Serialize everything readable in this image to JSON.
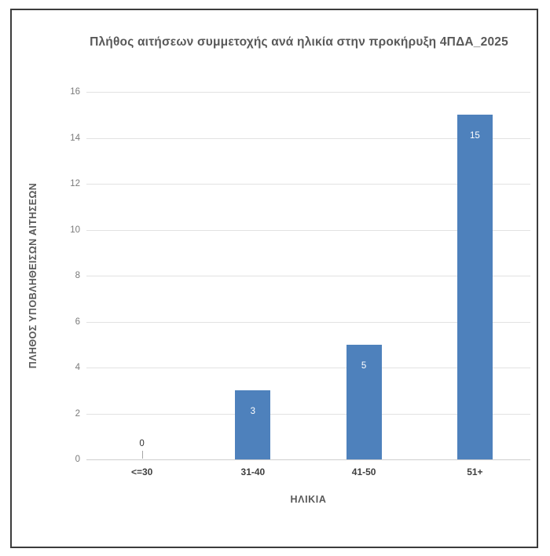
{
  "chart_data": {
    "type": "bar",
    "title": "Πλήθος αιτήσεων συμμετοχής ανά ηλικία στην προκήρυξη 4ΠΔΑ_2025",
    "categories": [
      "<=30",
      "31-40",
      "41-50",
      "51+"
    ],
    "values": [
      0,
      3,
      5,
      15
    ],
    "data_labels": [
      "0",
      "3",
      "5",
      "15"
    ],
    "xlabel": "ΗΛΙΚΙΑ",
    "ylabel": "ΠΛΗΘΟΣ ΥΠΟΒΛΗΘΕΙΣΩΝ ΑΙΤΗΣΕΩΝ",
    "ylim": [
      0,
      16
    ],
    "yticks": [
      0,
      2,
      4,
      6,
      8,
      10,
      12,
      14,
      16
    ],
    "grid": true,
    "legend": "none",
    "colors": {
      "bar": "#4e81bc",
      "title": "#595959",
      "axis_title": "#595959",
      "tick_label": "#7a7a7a",
      "category_label": "#3f3f3f",
      "gridline": "#e2e2e2",
      "axis_line": "#cfcfcf",
      "data_label_inside": "#ffffff",
      "data_label_outside": "#303030",
      "leader_line": "#a6a6a6",
      "frame_border": "#3c3c3c"
    }
  }
}
